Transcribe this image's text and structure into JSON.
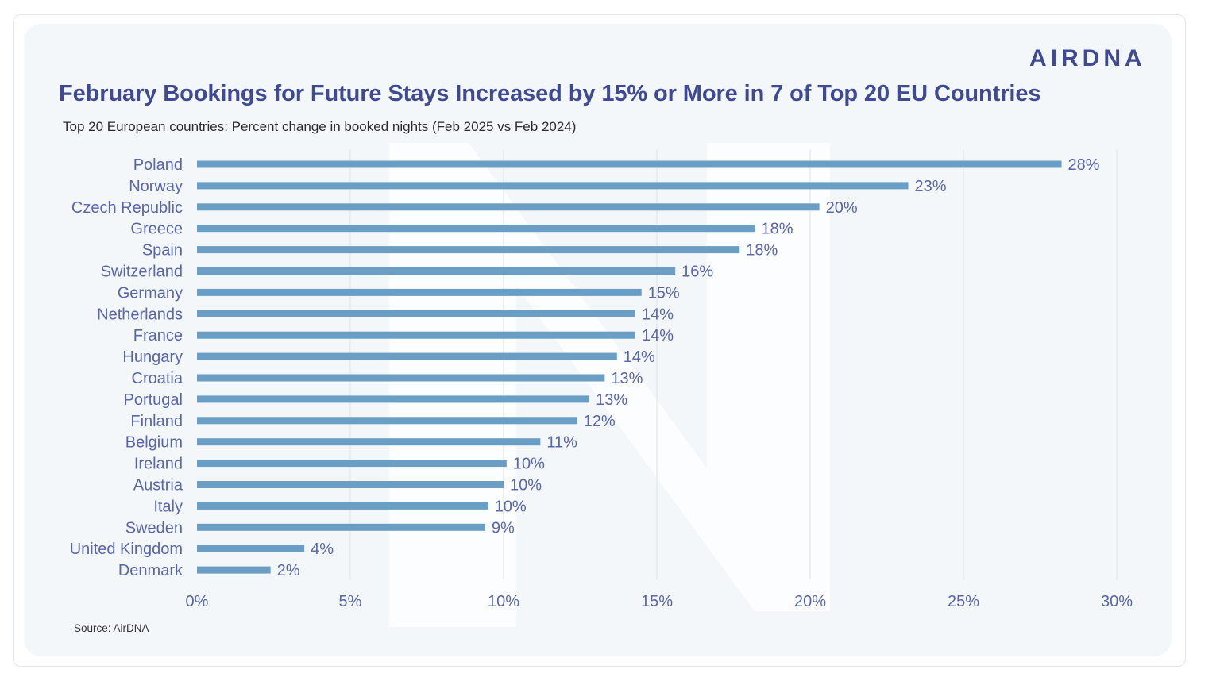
{
  "header": {
    "brand": "AIRDNA",
    "title": "February Bookings for Future Stays Increased by 15% or More in 7 of Top 20 EU Countries",
    "subtitle": "Top 20 European countries: Percent change in booked nights (Feb 2025 vs Feb 2024)"
  },
  "footer": {
    "source": "Source: AirDNA"
  },
  "colors": {
    "bar": "#6a9ec4",
    "label": "#5a66a8",
    "title": "#3f4a93",
    "grid": "#dde3ea"
  },
  "chart_data": {
    "type": "bar",
    "orientation": "horizontal",
    "title": "February Bookings for Future Stays Increased by 15% or More in 7 of Top 20 EU Countries",
    "subtitle": "Top 20 European countries: Percent change in booked nights (Feb 2025 vs Feb 2024)",
    "categories": [
      "Poland",
      "Norway",
      "Czech Republic",
      "Greece",
      "Spain",
      "Switzerland",
      "Germany",
      "Netherlands",
      "France",
      "Hungary",
      "Croatia",
      "Portugal",
      "Finland",
      "Belgium",
      "Ireland",
      "Austria",
      "Italy",
      "Sweden",
      "United Kingdom",
      "Denmark"
    ],
    "values": [
      28.2,
      23.2,
      20.3,
      18.2,
      17.7,
      15.6,
      14.5,
      14.3,
      14.3,
      13.7,
      13.3,
      12.8,
      12.4,
      11.2,
      10.1,
      10.0,
      9.5,
      9.4,
      3.5,
      2.4
    ],
    "data_labels": [
      "28%",
      "23%",
      "20%",
      "18%",
      "18%",
      "16%",
      "15%",
      "14%",
      "14%",
      "14%",
      "13%",
      "13%",
      "12%",
      "11%",
      "10%",
      "10%",
      "10%",
      "9%",
      "4%",
      "2%"
    ],
    "xlim": [
      0,
      30
    ],
    "x_ticks": [
      0,
      5,
      10,
      15,
      20,
      25,
      30
    ],
    "x_tick_labels": [
      "0%",
      "5%",
      "10%",
      "15%",
      "20%",
      "25%",
      "30%"
    ],
    "grid": true,
    "legend": "none"
  }
}
